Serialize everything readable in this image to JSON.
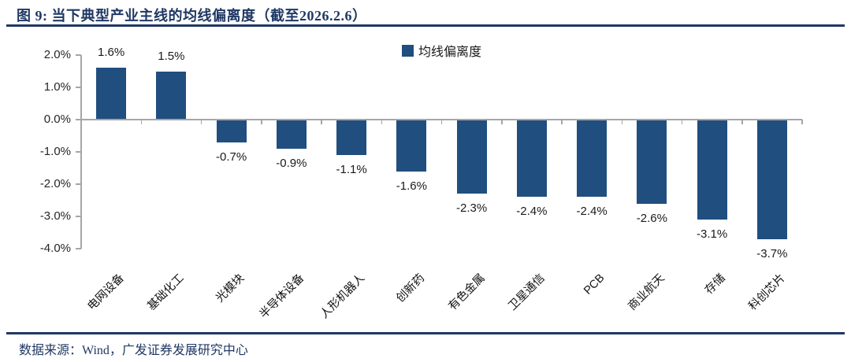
{
  "header": {
    "title": "图 9: 当下典型产业主线的均线偏离度（截至2026.2.6）"
  },
  "footer": {
    "source": "数据来源：Wind，广发证券发展研究中心"
  },
  "colors": {
    "accent_navy": "#1F3864",
    "bar_blue": "#204E7F",
    "axis_gray": "#A6A6A6",
    "label_black": "#1A1A1A"
  },
  "chart_data": {
    "type": "bar",
    "title": "当下典型产业主线的均线偏离度（截至2026.2.6）",
    "legend": "均线偏离度",
    "legend_position": "top-center",
    "categories": [
      "电网设备",
      "基础化工",
      "光模块",
      "半导体设备",
      "人形机器人",
      "创新药",
      "有色金属",
      "卫星通信",
      "PCB",
      "商业航天",
      "存储",
      "科创芯片"
    ],
    "values": [
      1.6,
      1.5,
      -0.7,
      -0.9,
      -1.1,
      -1.6,
      -2.3,
      -2.4,
      -2.4,
      -2.6,
      -3.1,
      -3.7
    ],
    "value_labels": [
      "1.6%",
      "1.5%",
      "-0.7%",
      "-0.9%",
      "-1.1%",
      "-1.6%",
      "-2.3%",
      "-2.4%",
      "-2.4%",
      "-2.6%",
      "-3.1%",
      "-3.7%"
    ],
    "unit": "%",
    "xlabel": "",
    "ylabel": "",
    "ylim": [
      -4.0,
      2.0
    ],
    "ytick_values": [
      2.0,
      1.0,
      0.0,
      -1.0,
      -2.0,
      -3.0,
      -4.0
    ],
    "ytick_labels": [
      "2.0%",
      "1.0%",
      "0.0%",
      "-1.0%",
      "-2.0%",
      "-3.0%",
      "-4.0%"
    ],
    "grid": false
  }
}
